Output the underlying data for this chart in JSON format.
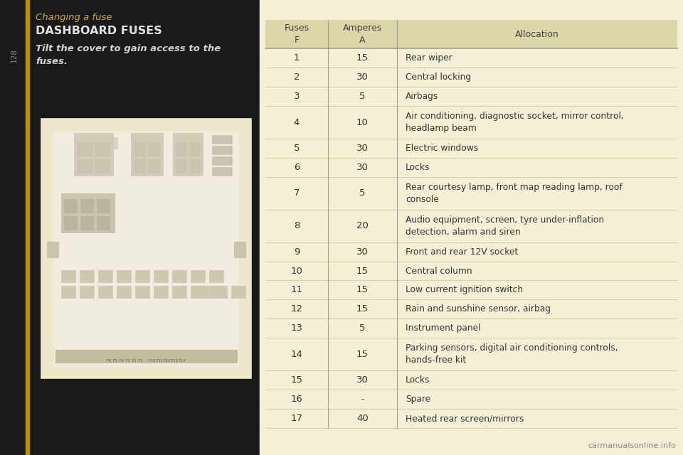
{
  "title": "Changing a fuse",
  "section_title": "DASHBOARD FUSES",
  "instruction": "Tilt the cover to gain access to the\nfuses.",
  "page_number": "128",
  "bg_color_left": "#1a1a1a",
  "bg_color_right": "#f5f0d5",
  "table_header_bg": "#dbd5a8",
  "table_row_bg": "#f5f0d5",
  "table_border_color": "#c0bb98",
  "text_color_left": "#e8e8e8",
  "title_color": "#d4a830",
  "section_title_color": "#e0e0e0",
  "instruction_color": "#d0d0d0",
  "page_num_color": "#888888",
  "fuses": [
    1,
    2,
    3,
    4,
    5,
    6,
    7,
    8,
    9,
    10,
    11,
    12,
    13,
    14,
    15,
    16,
    17
  ],
  "amperes": [
    "15",
    "30",
    "5",
    "10",
    "30",
    "30",
    "5",
    "20",
    "30",
    "15",
    "15",
    "15",
    "5",
    "15",
    "30",
    "-",
    "40"
  ],
  "allocations": [
    "Rear wiper",
    "Central locking",
    "Airbags",
    "Air conditioning, diagnostic socket, mirror control,\nheadlamp beam",
    "Electric windows",
    "Locks",
    "Rear courtesy lamp, front map reading lamp, roof\nconsole",
    "Audio equipment, screen, tyre under-inflation\ndetection, alarm and siren",
    "Front and rear 12V socket",
    "Central column",
    "Low current ignition switch",
    "Rain and sunshine sensor, airbag",
    "Instrument panel",
    "Parking sensors, digital air conditioning controls,\nhands-free kit",
    "Locks",
    "Spare",
    "Heated rear screen/mirrors"
  ],
  "col_header_fuses": "Fuses\nF",
  "col_header_amperes": "Amperes\nA",
  "col_header_allocation": "Allocation",
  "watermark": "carmanualsonline.info",
  "accent_bar_color": "#b8960a",
  "table_text_color": "#333333",
  "table_header_text_color": "#444444",
  "fuse_box_bg": "#ece8cc",
  "fuse_box_inner": "#f0ece0",
  "fuse_box_lines": "#b0a890"
}
